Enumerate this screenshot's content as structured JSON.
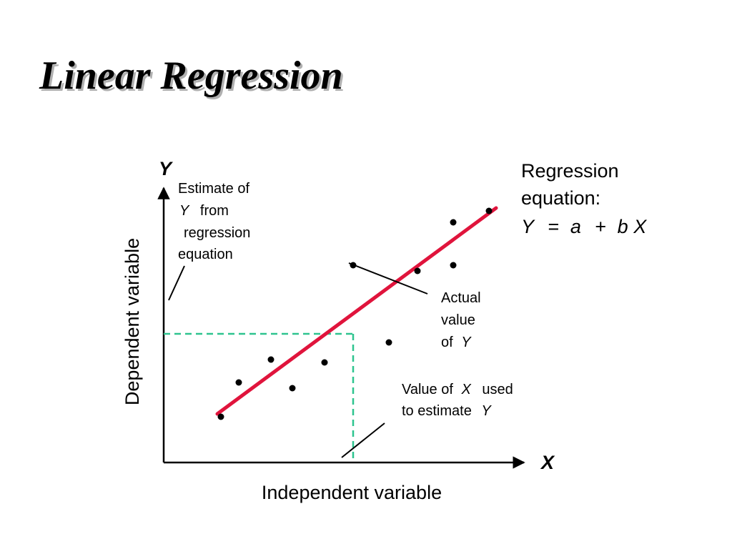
{
  "title": "Linear Regression",
  "axes": {
    "y_letter": "Y",
    "x_letter": "X",
    "y_label": "Dependent variable",
    "x_label": "Independent variable"
  },
  "equation": {
    "line1": "Regression",
    "line2": "equation:",
    "y": "Y",
    "eq": "=",
    "a": "a",
    "plus": "+",
    "b": "b",
    "x": "X"
  },
  "annotations": {
    "estimate": {
      "line1": "Estimate of",
      "line2_var": "Y",
      "line2_rest": "from",
      "line3": "regression",
      "line4": "equation"
    },
    "actual": {
      "line1": "Actual",
      "line2": "value",
      "line3_pre": "of",
      "line3_var": "Y"
    },
    "value_x": {
      "line1_pre": "Value of",
      "line1_var": "X",
      "line1_post": "used",
      "line2_pre": "to estimate",
      "line2_var": "Y"
    }
  },
  "colors": {
    "regression_line": "#e0143c",
    "guide_line": "#2ec48f",
    "axis": "#000000"
  },
  "chart_data": {
    "type": "scatter",
    "x_label": "Independent variable",
    "y_label": "Dependent variable",
    "points": [
      {
        "x": 1.6,
        "y": 1.6
      },
      {
        "x": 2.1,
        "y": 2.8
      },
      {
        "x": 3.0,
        "y": 3.6
      },
      {
        "x": 3.6,
        "y": 2.6
      },
      {
        "x": 4.5,
        "y": 3.5
      },
      {
        "x": 5.3,
        "y": 6.9
      },
      {
        "x": 6.3,
        "y": 4.2
      },
      {
        "x": 7.1,
        "y": 6.7
      },
      {
        "x": 8.1,
        "y": 6.9
      },
      {
        "x": 8.1,
        "y": 8.4
      },
      {
        "x": 9.1,
        "y": 8.8
      }
    ],
    "regression_line": {
      "x_start": 1.5,
      "y_start": 1.7,
      "x_end": 9.3,
      "y_end": 8.9
    },
    "estimate_point": {
      "x": 5.3,
      "y": 4.5
    },
    "xlim": [
      0,
      11
    ],
    "ylim": [
      0,
      9.5
    ]
  }
}
